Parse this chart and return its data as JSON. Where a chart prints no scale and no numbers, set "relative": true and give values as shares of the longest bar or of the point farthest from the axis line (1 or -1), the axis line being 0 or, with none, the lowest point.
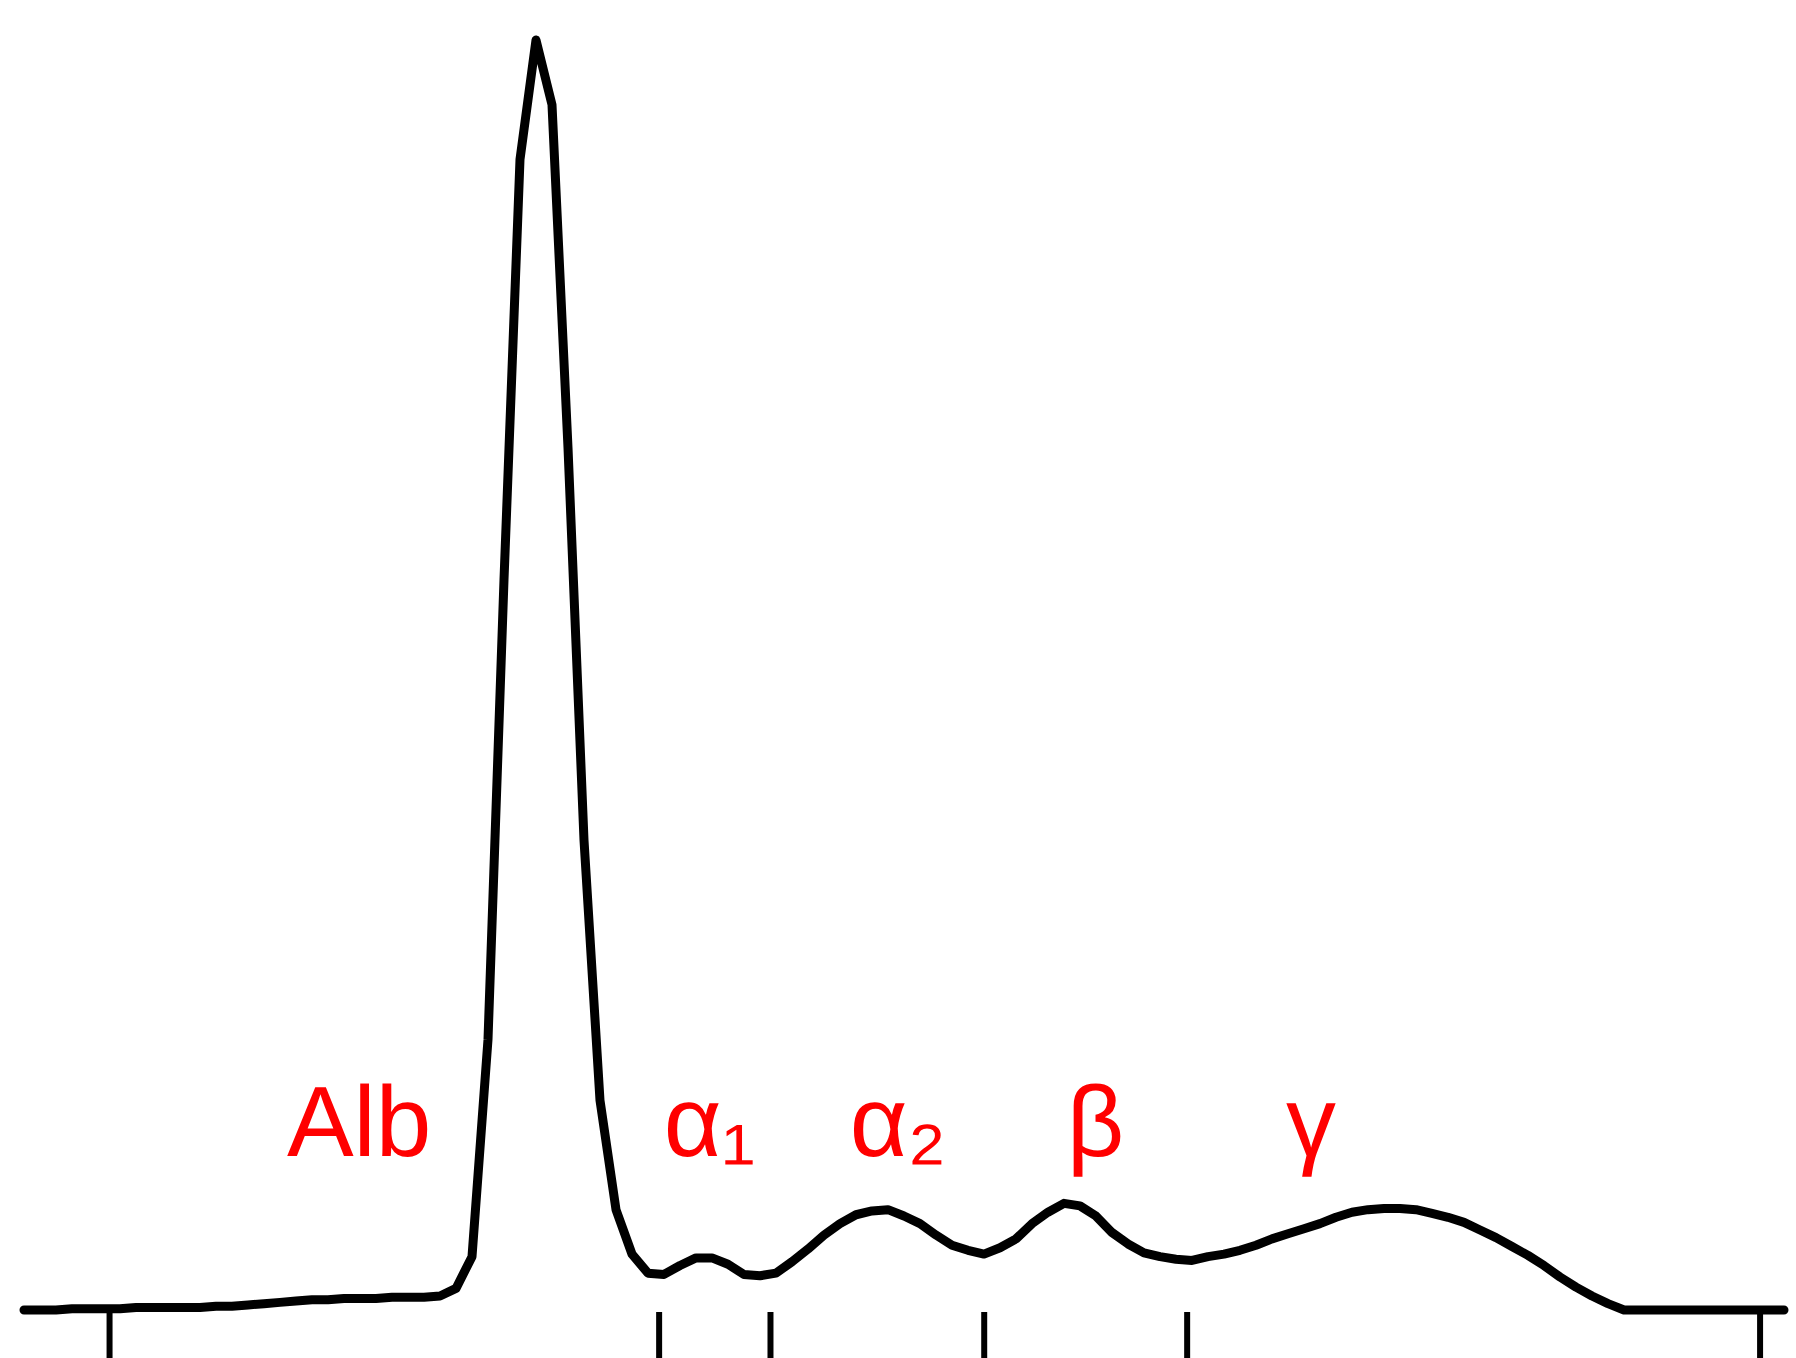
{
  "chart_data": {
    "type": "line",
    "relative": true,
    "categories": [
      null,
      null,
      null,
      null,
      null,
      null,
      null,
      null,
      null,
      null,
      null,
      null,
      null,
      null,
      null,
      null,
      null,
      null,
      null,
      null,
      null,
      null,
      null,
      null,
      null,
      null,
      null,
      null,
      null,
      null,
      null,
      null,
      null,
      null,
      null,
      null,
      null,
      null,
      null,
      null,
      null,
      null,
      null,
      null,
      null,
      null,
      null,
      null,
      null,
      null,
      null,
      null,
      null,
      null,
      null,
      null,
      null,
      null,
      null,
      null,
      null,
      null,
      null,
      null,
      null,
      null,
      null,
      null,
      null,
      null,
      null,
      null,
      null,
      null,
      null,
      null,
      null,
      null,
      null,
      null,
      null,
      null,
      null,
      null,
      null,
      null,
      null,
      null,
      null,
      null,
      null,
      null,
      null,
      null,
      null,
      null,
      null,
      null,
      null,
      null,
      null,
      null,
      null,
      null,
      null,
      null,
      null,
      null,
      null,
      null,
      null
    ],
    "series": [
      {
        "color": "#000000",
        "values": [
          0,
          0,
          0,
          0.001,
          0.001,
          0.001,
          0.001,
          0.002,
          0.002,
          0.002,
          0.002,
          0.002,
          0.003,
          0.003,
          0.004,
          0.005,
          0.006,
          0.007,
          0.008,
          0.008,
          0.009,
          0.009,
          0.009,
          0.01,
          0.01,
          0.01,
          0.011,
          0.017,
          0.042,
          0.213,
          0.575,
          0.906,
          1,
          0.949,
          0.679,
          0.37,
          0.165,
          0.079,
          0.044,
          0.029,
          0.028,
          0.035,
          0.041,
          0.041,
          0.036,
          0.028,
          0.027,
          0.029,
          0.038,
          0.048,
          0.059,
          0.068,
          0.075,
          0.078,
          0.079,
          0.074,
          0.068,
          0.059,
          0.051,
          0.047,
          0.044,
          0.049,
          0.056,
          0.068,
          0.077,
          0.084,
          0.082,
          0.074,
          0.061,
          0.052,
          0.045,
          0.042,
          0.04,
          0.039,
          0.042,
          0.044,
          0.047,
          0.051,
          0.056,
          0.06,
          0.064,
          0.068,
          0.073,
          0.077,
          0.079,
          0.08,
          0.08,
          0.079,
          0.076,
          0.073,
          0.069,
          0.063,
          0.057,
          0.05,
          0.043,
          0.035,
          0.026,
          0.018,
          0.011,
          0.005,
          0,
          0,
          0,
          0,
          0,
          0,
          0,
          0,
          0,
          0,
          0
        ]
      }
    ],
    "annotations": [
      "Alb",
      "α₁",
      "α₂",
      "β",
      "γ"
    ]
  }
}
